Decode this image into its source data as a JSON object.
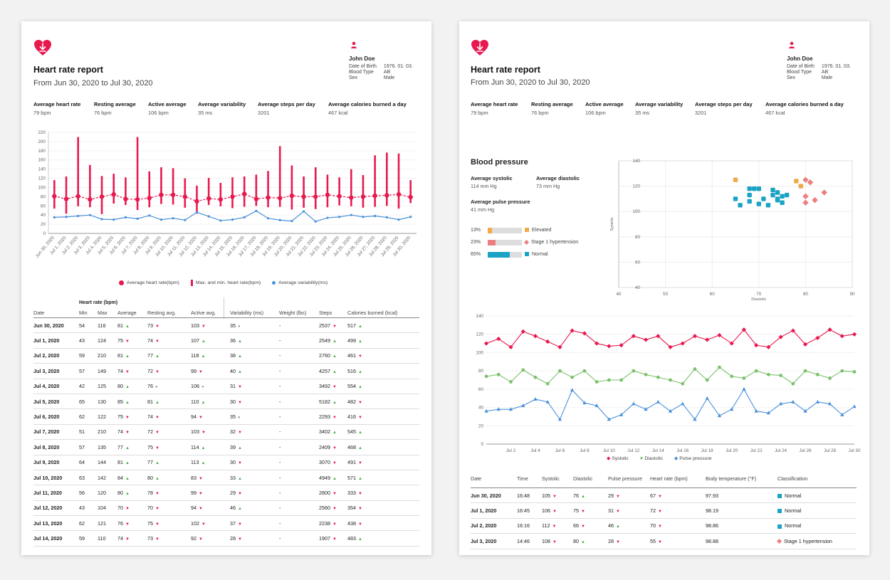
{
  "report": {
    "title": "Heart rate report",
    "date_range": "From Jun 30, 2020 to Jul 30, 2020"
  },
  "patient": {
    "icon": "person-icon",
    "name": "John Doe",
    "fields": [
      {
        "label": "Date of Birth",
        "value": "1976. 01. 03."
      },
      {
        "label": "Blood Type",
        "value": "AB"
      },
      {
        "label": "Sex",
        "value": "Male"
      }
    ]
  },
  "summary": [
    {
      "label": "Average heart rate",
      "value": "79 bpm"
    },
    {
      "label": "Resting average",
      "value": "76 bpm"
    },
    {
      "label": "Active average",
      "value": "106 bpm"
    },
    {
      "label": "Average variability",
      "value": "35 ms"
    },
    {
      "label": "Average steps per day",
      "value": "3201"
    },
    {
      "label": "Average calories burned a day",
      "value": "467 kcal"
    }
  ],
  "colors": {
    "accent": "#e8194f",
    "blue": "#4a90d9",
    "green": "#7cc16b",
    "teal": "#1aa3c4",
    "orange": "#f0a848",
    "salmon": "#ec8080"
  },
  "chart_data": [
    {
      "type": "line",
      "ylim": [
        0,
        220
      ],
      "yticks": [
        0,
        20,
        40,
        60,
        80,
        100,
        120,
        140,
        160,
        180,
        200,
        220
      ],
      "categories": [
        "Jun 30, 2020",
        "Jul 1, 2020",
        "Jul 2, 2020",
        "Jul 3, 2020",
        "Jul 4, 2020",
        "Jul 5, 2020",
        "Jul 6, 2020",
        "Jul 7, 2020",
        "Jul 8, 2020",
        "Jul 9, 2020",
        "Jul 10, 2020",
        "Jul 11, 2020",
        "Jul 12, 2020",
        "Jul 13, 2020",
        "Jul 14, 2020",
        "Jul 15, 2020",
        "Jul 16, 2020",
        "Jul 17, 2020",
        "Jul 18, 2020",
        "Jul 19, 2020",
        "Jul 20, 2020",
        "Jul 21, 2020",
        "Jul 22, 2020",
        "Jul 23, 2020",
        "Jul 24, 2020",
        "Jul 25, 2020",
        "Jul 26, 2020",
        "Jul 27, 2020",
        "Jul 28, 2020",
        "Jul 29, 2020",
        "Jul 30, 2020"
      ],
      "series": [
        {
          "name": "Average heart rate(bpm)",
          "values": [
            81,
            75,
            81,
            74,
            80,
            85,
            75,
            74,
            77,
            84,
            84,
            80,
            70,
            76,
            74,
            80,
            86,
            75,
            78,
            77,
            82,
            80,
            80,
            84,
            81,
            78,
            80,
            82,
            83,
            85,
            79
          ]
        },
        {
          "name": "Max. and min. heart rate(bpm)",
          "max": [
            116,
            124,
            210,
            149,
            125,
            130,
            122,
            210,
            135,
            144,
            142,
            120,
            104,
            121,
            110,
            122,
            124,
            128,
            136,
            190,
            148,
            124,
            144,
            128,
            122,
            140,
            127,
            170,
            176,
            174,
            116
          ],
          "min": [
            54,
            43,
            59,
            57,
            42,
            65,
            62,
            51,
            57,
            64,
            63,
            56,
            43,
            62,
            59,
            55,
            58,
            60,
            57,
            58,
            52,
            56,
            53,
            57,
            61,
            59,
            56,
            58,
            60,
            54,
            66
          ]
        },
        {
          "name": "Average variability(ms)",
          "values": [
            35,
            36,
            38,
            40,
            31,
            30,
            35,
            32,
            39,
            30,
            33,
            29,
            46,
            37,
            28,
            30,
            35,
            49,
            33,
            29,
            27,
            48,
            26,
            34,
            36,
            40,
            36,
            38,
            35,
            30,
            36
          ]
        }
      ]
    },
    {
      "type": "scatter",
      "xlabel": "Diastolic",
      "ylabel": "Systolic",
      "xlim": [
        40,
        90
      ],
      "ylim": [
        40,
        140
      ],
      "xticks": [
        40,
        50,
        60,
        70,
        80,
        90
      ],
      "yticks": [
        40,
        60,
        80,
        100,
        120,
        140
      ],
      "series": [
        {
          "name": "Elevated",
          "points": [
            [
              65,
              125
            ],
            [
              78,
              124
            ],
            [
              79,
              120
            ]
          ]
        },
        {
          "name": "Stage 1 hypertension",
          "points": [
            [
              80,
              125
            ],
            [
              81,
              123
            ],
            [
              80,
              112
            ],
            [
              82,
              109
            ],
            [
              84,
              115
            ],
            [
              80,
              107
            ]
          ]
        },
        {
          "name": "Normal",
          "points": [
            [
              65,
              110
            ],
            [
              66,
              105
            ],
            [
              68,
              113
            ],
            [
              68,
              108
            ],
            [
              68,
              118
            ],
            [
              69,
              118
            ],
            [
              70,
              118
            ],
            [
              70,
              106
            ],
            [
              71,
              110
            ],
            [
              72,
              105
            ],
            [
              73,
              117
            ],
            [
              73,
              113
            ],
            [
              74,
              110
            ],
            [
              74,
              109
            ],
            [
              75,
              112
            ],
            [
              76,
              113
            ],
            [
              75,
              107
            ],
            [
              74,
              115
            ]
          ]
        }
      ]
    },
    {
      "type": "line",
      "ylim": [
        0,
        140
      ],
      "yticks": [
        0,
        20,
        40,
        60,
        80,
        100,
        120,
        140
      ],
      "x": [
        "Jun 30",
        "Jul 1",
        "Jul 2",
        "Jul 3",
        "Jul 4",
        "Jul 5",
        "Jul 6",
        "Jul 7",
        "Jul 8",
        "Jul 9",
        "Jul 10",
        "Jul 11",
        "Jul 12",
        "Jul 13",
        "Jul 14",
        "Jul 15",
        "Jul 16",
        "Jul 17",
        "Jul 18",
        "Jul 19",
        "Jul 20",
        "Jul 21",
        "Jul 22",
        "Jul 23",
        "Jul 24",
        "Jul 25",
        "Jul 26",
        "Jul 27",
        "Jul 28",
        "Jul 29",
        "Jul 30"
      ],
      "xticks": [
        "Jul 2",
        "Jul 4",
        "Jul 6",
        "Jul 8",
        "Jul 10",
        "Jul 12",
        "Jul 14",
        "Jul 16",
        "Jul 18",
        "Jul 20",
        "Jul 22",
        "Jul 24",
        "Jul 26",
        "Jul 28",
        "Jul 30"
      ],
      "series": [
        {
          "name": "Systolic",
          "values": [
            110,
            115,
            106,
            123,
            118,
            112,
            106,
            124,
            121,
            110,
            107,
            108,
            118,
            114,
            118,
            106,
            110,
            118,
            114,
            119,
            110,
            125,
            108,
            106,
            117,
            124,
            109,
            116,
            125,
            118,
            120
          ]
        },
        {
          "name": "Diastolic",
          "values": [
            74,
            76,
            68,
            81,
            73,
            66,
            80,
            73,
            80,
            68,
            70,
            70,
            80,
            76,
            73,
            70,
            66,
            82,
            70,
            84,
            74,
            72,
            80,
            76,
            75,
            66,
            80,
            76,
            72,
            80,
            79
          ]
        },
        {
          "name": "Pulse pressure",
          "values": [
            36,
            38,
            38,
            42,
            49,
            46,
            27,
            59,
            45,
            42,
            27,
            32,
            44,
            38,
            46,
            36,
            44,
            27,
            50,
            31,
            38,
            60,
            36,
            34,
            44,
            46,
            36,
            46,
            44,
            32,
            41
          ]
        }
      ]
    }
  ],
  "table1": {
    "group_header": "Heart rate (bpm)",
    "headers": [
      "Date",
      "Min",
      "Max",
      "Average",
      "Resting avg.",
      "Active avg.",
      "Variability (ms)",
      "Weight (lbs)",
      "Steps",
      "Calories burned (kcal)"
    ],
    "rows": [
      {
        "date": "Jun 30, 2020",
        "min": "54",
        "max": "116",
        "avg": "81",
        "avg_d": "up",
        "rest": "73",
        "rest_d": "down",
        "act": "103",
        "act_d": "down",
        "var": "35",
        "var_d": "neutral",
        "weight": "-",
        "steps": "2537",
        "steps_d": "down",
        "cal": "517",
        "cal_d": "up"
      },
      {
        "date": "Jul 1, 2020",
        "min": "43",
        "max": "124",
        "avg": "75",
        "avg_d": "down",
        "rest": "74",
        "rest_d": "down",
        "act": "107",
        "act_d": "up",
        "var": "36",
        "var_d": "up",
        "weight": "-",
        "steps": "2549",
        "steps_d": "up",
        "cal": "499",
        "cal_d": "up"
      },
      {
        "date": "Jul 2, 2020",
        "min": "59",
        "max": "210",
        "avg": "81",
        "avg_d": "up",
        "rest": "77",
        "rest_d": "up",
        "act": "118",
        "act_d": "up",
        "var": "38",
        "var_d": "up",
        "weight": "-",
        "steps": "2760",
        "steps_d": "up",
        "cal": "461",
        "cal_d": "down"
      },
      {
        "date": "Jul 3, 2020",
        "min": "57",
        "max": "149",
        "avg": "74",
        "avg_d": "down",
        "rest": "72",
        "rest_d": "down",
        "act": "99",
        "act_d": "down",
        "var": "40",
        "var_d": "up",
        "weight": "-",
        "steps": "4257",
        "steps_d": "up",
        "cal": "516",
        "cal_d": "up"
      },
      {
        "date": "Jul 4, 2020",
        "min": "42",
        "max": "125",
        "avg": "80",
        "avg_d": "up",
        "rest": "76",
        "rest_d": "neutral",
        "act": "106",
        "act_d": "neutral",
        "var": "31",
        "var_d": "down",
        "weight": "-",
        "steps": "3492",
        "steps_d": "down",
        "cal": "554",
        "cal_d": "up"
      },
      {
        "date": "Jul 5, 2020",
        "min": "65",
        "max": "130",
        "avg": "85",
        "avg_d": "up",
        "rest": "81",
        "rest_d": "up",
        "act": "110",
        "act_d": "up",
        "var": "30",
        "var_d": "down",
        "weight": "-",
        "steps": "5182",
        "steps_d": "up",
        "cal": "482",
        "cal_d": "down"
      },
      {
        "date": "Jul 6, 2020",
        "min": "62",
        "max": "122",
        "avg": "75",
        "avg_d": "down",
        "rest": "74",
        "rest_d": "down",
        "act": "94",
        "act_d": "down",
        "var": "35",
        "var_d": "neutral",
        "weight": "-",
        "steps": "2293",
        "steps_d": "down",
        "cal": "416",
        "cal_d": "down"
      },
      {
        "date": "Jul 7, 2020",
        "min": "51",
        "max": "210",
        "avg": "74",
        "avg_d": "down",
        "rest": "72",
        "rest_d": "down",
        "act": "103",
        "act_d": "down",
        "var": "32",
        "var_d": "down",
        "weight": "-",
        "steps": "3402",
        "steps_d": "up",
        "cal": "545",
        "cal_d": "up"
      },
      {
        "date": "Jul 8, 2020",
        "min": "57",
        "max": "135",
        "avg": "77",
        "avg_d": "up",
        "rest": "75",
        "rest_d": "down",
        "act": "114",
        "act_d": "up",
        "var": "39",
        "var_d": "up",
        "weight": "-",
        "steps": "2409",
        "steps_d": "down",
        "cal": "468",
        "cal_d": "up"
      },
      {
        "date": "Jul 9, 2020",
        "min": "64",
        "max": "144",
        "avg": "81",
        "avg_d": "up",
        "rest": "77",
        "rest_d": "up",
        "act": "113",
        "act_d": "up",
        "var": "30",
        "var_d": "down",
        "weight": "-",
        "steps": "3070",
        "steps_d": "down",
        "cal": "491",
        "cal_d": "down"
      },
      {
        "date": "Jul 10, 2020",
        "min": "63",
        "max": "142",
        "avg": "84",
        "avg_d": "up",
        "rest": "80",
        "rest_d": "up",
        "act": "83",
        "act_d": "down",
        "var": "33",
        "var_d": "up",
        "weight": "-",
        "steps": "4949",
        "steps_d": "up",
        "cal": "571",
        "cal_d": "up"
      },
      {
        "date": "Jul 11, 2020",
        "min": "56",
        "max": "120",
        "avg": "80",
        "avg_d": "up",
        "rest": "78",
        "rest_d": "down",
        "act": "99",
        "act_d": "down",
        "var": "29",
        "var_d": "down",
        "weight": "-",
        "steps": "2800",
        "steps_d": "down",
        "cal": "333",
        "cal_d": "down"
      },
      {
        "date": "Jul 12, 2020",
        "min": "43",
        "max": "104",
        "avg": "70",
        "avg_d": "down",
        "rest": "70",
        "rest_d": "down",
        "act": "94",
        "act_d": "down",
        "var": "46",
        "var_d": "up",
        "weight": "-",
        "steps": "2560",
        "steps_d": "down",
        "cal": "354",
        "cal_d": "down"
      },
      {
        "date": "Jul 13, 2020",
        "min": "62",
        "max": "121",
        "avg": "76",
        "avg_d": "down",
        "rest": "75",
        "rest_d": "down",
        "act": "102",
        "act_d": "down",
        "var": "37",
        "var_d": "down",
        "weight": "-",
        "steps": "2238",
        "steps_d": "down",
        "cal": "438",
        "cal_d": "down"
      },
      {
        "date": "Jul 14, 2020",
        "min": "59",
        "max": "110",
        "avg": "74",
        "avg_d": "down",
        "rest": "73",
        "rest_d": "down",
        "act": "92",
        "act_d": "down",
        "var": "28",
        "var_d": "down",
        "weight": "-",
        "steps": "1907",
        "steps_d": "down",
        "cal": "483",
        "cal_d": "up"
      }
    ]
  },
  "blood_pressure": {
    "title": "Blood pressure",
    "stats": [
      {
        "label": "Average systolic",
        "value": "114 mm Hg"
      },
      {
        "label": "Average diastolic",
        "value": "73 mm Hg"
      },
      {
        "label": "Average pulse pressure",
        "value": "41 mm Hg"
      }
    ],
    "classes": [
      {
        "pct": "13%",
        "fraction": 0.13,
        "name": "Elevated",
        "color": "#f0a848",
        "shape": "square"
      },
      {
        "pct": "23%",
        "fraction": 0.23,
        "name": "Stage 1 hypertension",
        "color": "#ec8080",
        "shape": "diamond"
      },
      {
        "pct": "65%",
        "fraction": 0.65,
        "name": "Normal",
        "color": "#1aa3c4",
        "shape": "square"
      }
    ]
  },
  "table2": {
    "headers": [
      "Date",
      "Time",
      "Systolic",
      "Diastolic",
      "Pulse pressure",
      "Heart rate (bpm)",
      "Body temperature (°F)",
      "Classification"
    ],
    "rows": [
      {
        "date": "Jun 30, 2020",
        "time": "16:48",
        "sys": "105",
        "sys_d": "down",
        "dia": "76",
        "dia_d": "up",
        "pp": "29",
        "pp_d": "down",
        "hr": "67",
        "hr_d": "down",
        "temp": "97.93",
        "cls": "Normal",
        "cls_key": "Normal"
      },
      {
        "date": "Jul 1, 2020",
        "time": "16:45",
        "sys": "106",
        "sys_d": "down",
        "dia": "75",
        "dia_d": "down",
        "pp": "31",
        "pp_d": "down",
        "hr": "72",
        "hr_d": "down",
        "temp": "98.19",
        "cls": "Normal",
        "cls_key": "Normal"
      },
      {
        "date": "Jul 2, 2020",
        "time": "16:16",
        "sys": "112",
        "sys_d": "down",
        "dia": "66",
        "dia_d": "down",
        "pp": "46",
        "pp_d": "up",
        "hr": "70",
        "hr_d": "down",
        "temp": "98.86",
        "cls": "Normal",
        "cls_key": "Normal"
      },
      {
        "date": "Jul 3, 2020",
        "time": "14:46",
        "sys": "108",
        "sys_d": "down",
        "dia": "80",
        "dia_d": "up",
        "pp": "28",
        "pp_d": "down",
        "hr": "55",
        "hr_d": "down",
        "temp": "98.88",
        "cls": "Stage 1 hypertension",
        "cls_key": "Stage 1 hypertension"
      }
    ]
  }
}
